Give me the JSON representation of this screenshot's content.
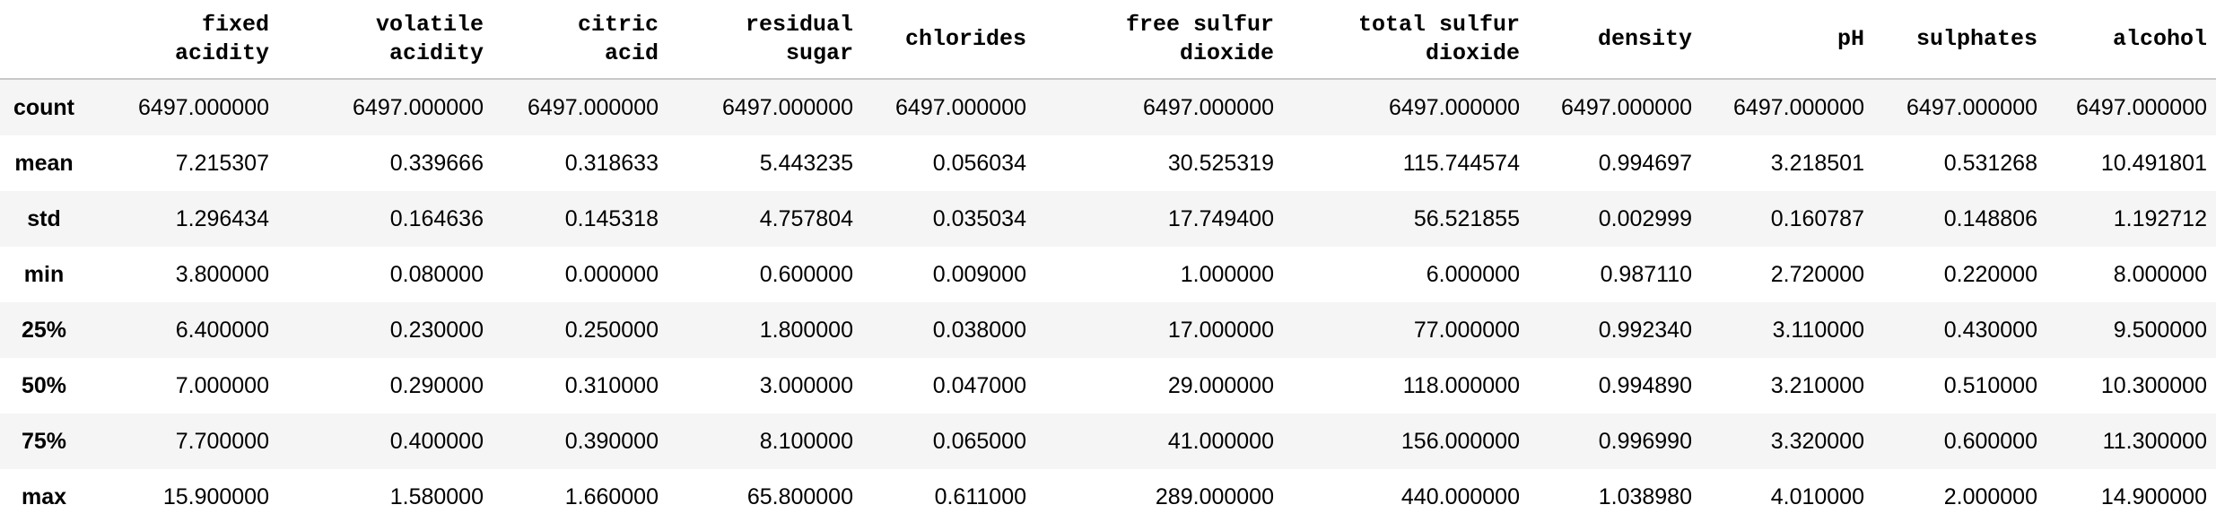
{
  "table": {
    "index_header": "",
    "columns": [
      "fixed\nacidity",
      "volatile\nacidity",
      "citric\nacid",
      "residual\nsugar",
      "chlorides",
      "free sulfur\ndioxide",
      "total sulfur\ndioxide",
      "density",
      "pH",
      "sulphates",
      "alcohol"
    ],
    "rows": [
      {
        "label": "count",
        "values": [
          "6497.000000",
          "6497.000000",
          "6497.000000",
          "6497.000000",
          "6497.000000",
          "6497.000000",
          "6497.000000",
          "6497.000000",
          "6497.000000",
          "6497.000000",
          "6497.000000"
        ]
      },
      {
        "label": "mean",
        "values": [
          "7.215307",
          "0.339666",
          "0.318633",
          "5.443235",
          "0.056034",
          "30.525319",
          "115.744574",
          "0.994697",
          "3.218501",
          "0.531268",
          "10.491801"
        ]
      },
      {
        "label": "std",
        "values": [
          "1.296434",
          "0.164636",
          "0.145318",
          "4.757804",
          "0.035034",
          "17.749400",
          "56.521855",
          "0.002999",
          "0.160787",
          "0.148806",
          "1.192712"
        ]
      },
      {
        "label": "min",
        "values": [
          "3.800000",
          "0.080000",
          "0.000000",
          "0.600000",
          "0.009000",
          "1.000000",
          "6.000000",
          "0.987110",
          "2.720000",
          "0.220000",
          "8.000000"
        ]
      },
      {
        "label": "25%",
        "values": [
          "6.400000",
          "0.230000",
          "0.250000",
          "1.800000",
          "0.038000",
          "17.000000",
          "77.000000",
          "0.992340",
          "3.110000",
          "0.430000",
          "9.500000"
        ]
      },
      {
        "label": "50%",
        "values": [
          "7.000000",
          "0.290000",
          "0.310000",
          "3.000000",
          "0.047000",
          "29.000000",
          "118.000000",
          "0.994890",
          "3.210000",
          "0.510000",
          "10.300000"
        ]
      },
      {
        "label": "75%",
        "values": [
          "7.700000",
          "0.400000",
          "0.390000",
          "8.100000",
          "0.065000",
          "41.000000",
          "156.000000",
          "0.996990",
          "3.320000",
          "0.600000",
          "11.300000"
        ]
      },
      {
        "label": "max",
        "values": [
          "15.900000",
          "1.580000",
          "1.660000",
          "65.800000",
          "0.611000",
          "289.000000",
          "440.000000",
          "1.038980",
          "4.010000",
          "2.000000",
          "14.900000"
        ]
      }
    ]
  },
  "colors": {
    "stripe": "#f5f5f5",
    "header_rule": "#c8c8c8"
  }
}
